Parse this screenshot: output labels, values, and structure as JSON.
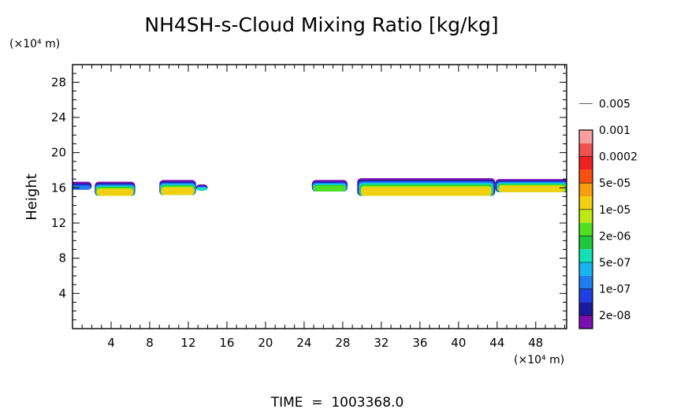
{
  "chart_data": {
    "type": "heatmap",
    "title": "NH4SH-s-Cloud Mixing Ratio [kg/kg]",
    "xlabel": "",
    "x_unit": "(×10⁴ m)",
    "ylabel": "Height",
    "y_unit": "(×10⁴ m)",
    "footer": "TIME  =  1003368.0",
    "xlim": [
      0,
      51.2
    ],
    "ylim": [
      0,
      30
    ],
    "x_ticks": [
      4,
      8,
      12,
      16,
      20,
      24,
      28,
      32,
      36,
      40,
      44,
      48
    ],
    "y_ticks": [
      4,
      8,
      12,
      16,
      20,
      24,
      28
    ],
    "colorbar": {
      "levels": [
        "2e-08",
        "1e-07",
        "5e-07",
        "2e-06",
        "1e-05",
        "5e-05",
        "0.0002",
        "0.001",
        "0.005"
      ],
      "colors": [
        "#7a0fb0",
        "#1a1a9a",
        "#1f3fe0",
        "#1e7ef0",
        "#16b4f0",
        "#14e0b4",
        "#1ec83c",
        "#50e020",
        "#c0e814",
        "#f0d010",
        "#f89c10",
        "#f85010",
        "#f02020",
        "#f05050",
        "#f8a0a0"
      ]
    },
    "cloud_regions": [
      {
        "x": [
          -0.5,
          2.0
        ],
        "y": [
          15.8,
          16.6
        ],
        "level_max": "1e-07"
      },
      {
        "x": [
          2.3,
          6.5
        ],
        "y": [
          15.1,
          16.6
        ],
        "level_max": "1e-05"
      },
      {
        "x": [
          9.0,
          12.8
        ],
        "y": [
          15.2,
          16.8
        ],
        "level_max": "1e-05"
      },
      {
        "x": [
          12.8,
          14.0
        ],
        "y": [
          15.7,
          16.3
        ],
        "level_max": "5e-07"
      },
      {
        "x": [
          24.8,
          28.5
        ],
        "y": [
          15.6,
          16.8
        ],
        "level_max": "2e-06"
      },
      {
        "x": [
          29.5,
          43.8
        ],
        "y": [
          15.1,
          17.0
        ],
        "level_max": "1e-05"
      },
      {
        "x": [
          43.8,
          51.4
        ],
        "y": [
          15.5,
          16.9
        ],
        "level_max": "1e-05"
      }
    ]
  }
}
